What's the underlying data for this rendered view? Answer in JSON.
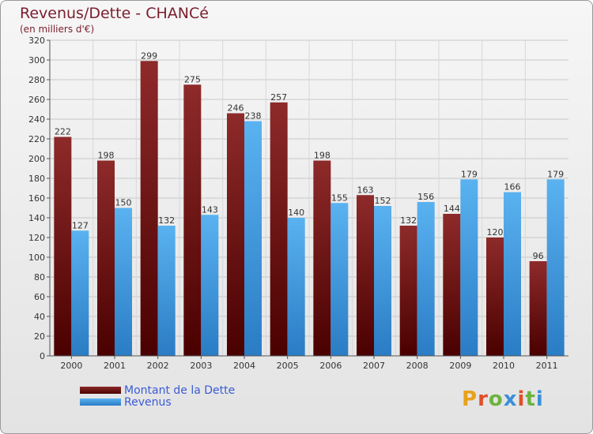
{
  "title": "Revenus/Dette - CHANCé",
  "subtitle": "(en milliers d'€)",
  "logo_text": "Proxiti",
  "colors": {
    "dette": "#7a1a1a",
    "revenus": "#4aa3e6"
  },
  "chart_data": {
    "type": "bar",
    "title": "Revenus/Dette - CHANCé",
    "categories": [
      "2000",
      "2001",
      "2002",
      "2003",
      "2004",
      "2005",
      "2006",
      "2007",
      "2008",
      "2009",
      "2010",
      "2011"
    ],
    "series": [
      {
        "name": "Montant de la Dette",
        "values": [
          222,
          198,
          299,
          275,
          246,
          257,
          198,
          163,
          132,
          144,
          120,
          96
        ]
      },
      {
        "name": "Revenus",
        "values": [
          127,
          150,
          132,
          143,
          238,
          140,
          155,
          152,
          156,
          179,
          166,
          179
        ]
      }
    ],
    "ylim": [
      0,
      320
    ],
    "ytick_step": 20,
    "grid": true,
    "legend": "bottom-left"
  }
}
